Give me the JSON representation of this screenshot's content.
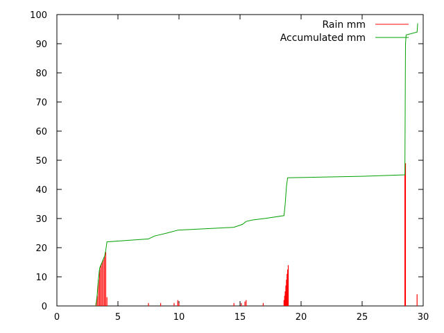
{
  "chart_data": {
    "type": "bar+line",
    "title": "",
    "xlabel": "",
    "ylabel": "",
    "xlim": [
      0,
      30
    ],
    "ylim": [
      0,
      100
    ],
    "xticks": [
      0,
      5,
      10,
      15,
      20,
      25,
      30
    ],
    "yticks": [
      0,
      10,
      20,
      30,
      40,
      50,
      60,
      70,
      80,
      90,
      100
    ],
    "grid": false,
    "legend_position": "top-right",
    "series": [
      {
        "name": "Rain mm",
        "kind": "impulse",
        "color": "#ff0000",
        "points": [
          [
            3.2,
            1.0
          ],
          [
            3.3,
            3.5
          ],
          [
            3.4,
            9.0
          ],
          [
            3.5,
            12.5
          ],
          [
            3.6,
            14.0
          ],
          [
            3.7,
            15.0
          ],
          [
            3.8,
            16.0
          ],
          [
            3.9,
            17.0
          ],
          [
            4.0,
            18.5
          ],
          [
            4.1,
            3.0
          ],
          [
            7.5,
            1.0
          ],
          [
            8.5,
            1.0
          ],
          [
            9.6,
            1.0
          ],
          [
            9.9,
            2.0
          ],
          [
            10.0,
            1.0
          ],
          [
            14.5,
            1.0
          ],
          [
            15.1,
            1.0
          ],
          [
            15.4,
            1.5
          ],
          [
            15.5,
            2.0
          ],
          [
            16.9,
            1.0
          ],
          [
            18.6,
            2.0
          ],
          [
            18.65,
            3.5
          ],
          [
            18.7,
            5.0
          ],
          [
            18.75,
            7.0
          ],
          [
            18.8,
            9.0
          ],
          [
            18.85,
            11.0
          ],
          [
            18.9,
            12.5
          ],
          [
            18.95,
            14.0
          ],
          [
            28.5,
            45.0
          ],
          [
            28.55,
            49.0
          ],
          [
            29.5,
            4.0
          ]
        ]
      },
      {
        "name": "Accumulated mm",
        "kind": "line",
        "color": "#00a000",
        "points": [
          [
            3.2,
            0
          ],
          [
            3.3,
            4
          ],
          [
            3.4,
            9
          ],
          [
            3.5,
            13
          ],
          [
            3.7,
            15
          ],
          [
            3.9,
            17
          ],
          [
            4.0,
            19
          ],
          [
            4.1,
            22
          ],
          [
            7.5,
            23
          ],
          [
            8.0,
            24
          ],
          [
            9.0,
            25
          ],
          [
            9.9,
            26
          ],
          [
            14.5,
            27
          ],
          [
            15.2,
            28
          ],
          [
            15.5,
            29
          ],
          [
            16.0,
            29.5
          ],
          [
            17.0,
            30
          ],
          [
            18.6,
            31
          ],
          [
            18.7,
            35
          ],
          [
            18.8,
            41
          ],
          [
            18.9,
            44
          ],
          [
            25.0,
            44.5
          ],
          [
            28.5,
            45
          ],
          [
            28.55,
            90
          ],
          [
            28.6,
            93
          ],
          [
            29.5,
            94
          ],
          [
            29.55,
            97
          ]
        ]
      }
    ]
  }
}
